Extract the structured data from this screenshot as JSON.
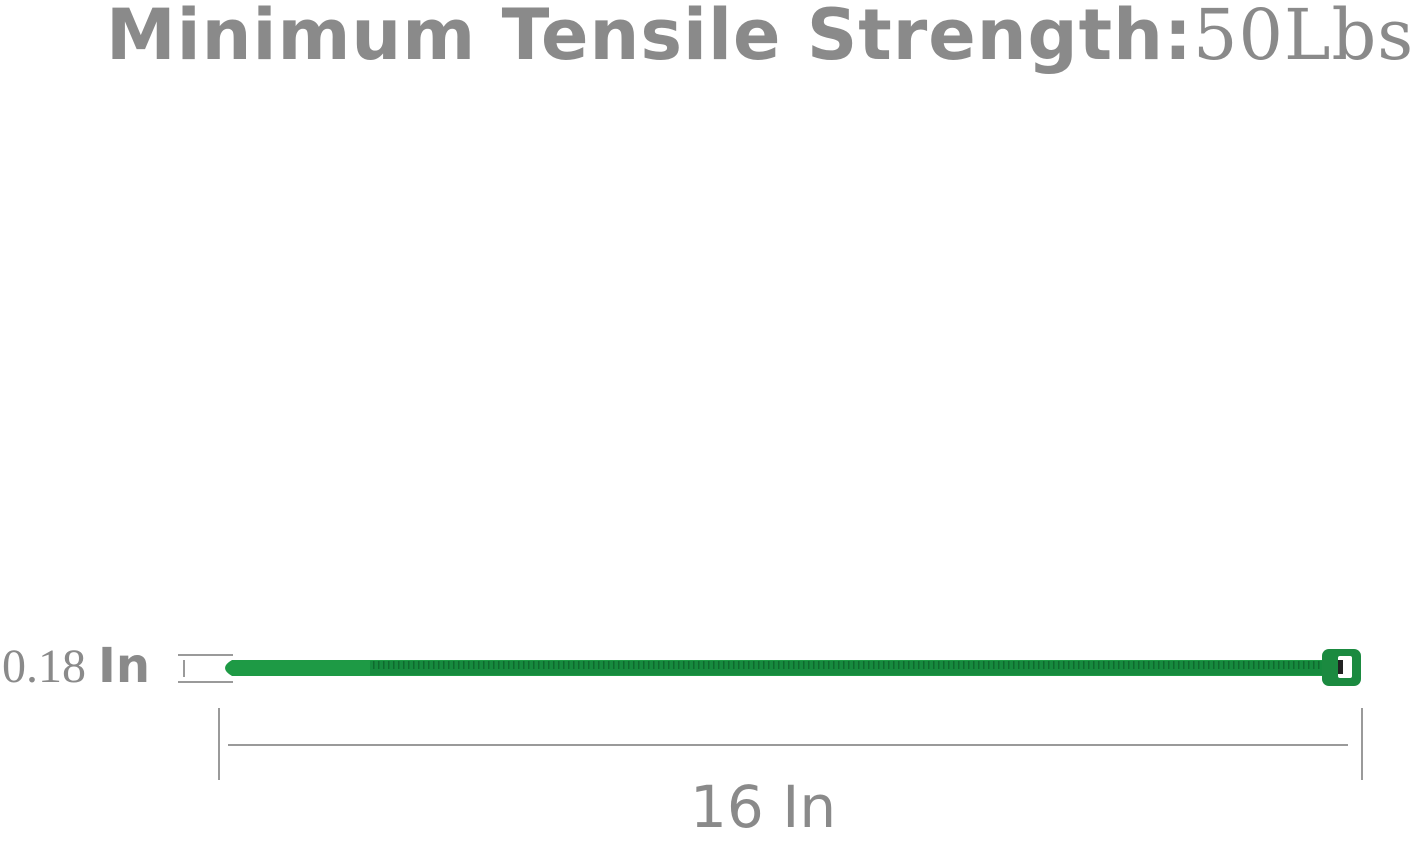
{
  "title": {
    "label": "Minimum Tensile Strength:",
    "value": "50Lbs"
  },
  "dimensions": {
    "width_value": "0.18",
    "width_unit": "In",
    "length": "16 In"
  },
  "colors": {
    "text": "#8a8a8a",
    "tie": "#1e9a45",
    "tie_dark": "#15803a",
    "lines": "#9a9a9a"
  },
  "product": {
    "type": "cable-tie",
    "color": "green"
  }
}
